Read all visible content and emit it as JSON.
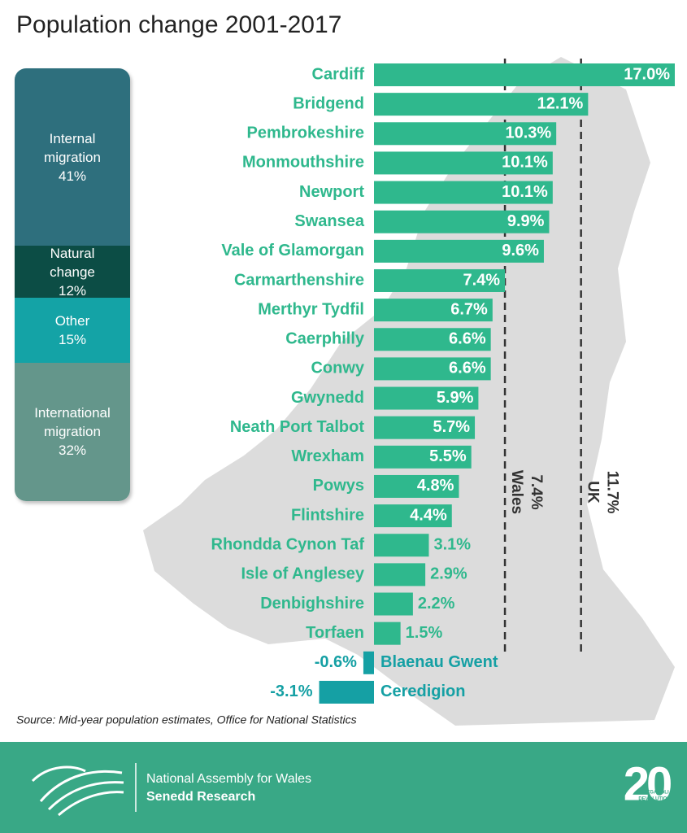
{
  "chart_data": {
    "type": "bar",
    "orientation": "horizontal",
    "title": "Population change 2001-2017",
    "source": "Source: Mid-year population estimates, Office for National Statistics",
    "categories": [
      "Cardiff",
      "Bridgend",
      "Pembrokeshire",
      "Monmouthshire",
      "Newport",
      "Swansea",
      "Vale of Glamorgan",
      "Carmarthenshire",
      "Merthyr Tydfil",
      "Caerphilly",
      "Conwy",
      "Gwynedd",
      "Neath Port Talbot",
      "Wrexham",
      "Powys",
      "Flintshire",
      "Rhondda Cynon Taf",
      "Isle of Anglesey",
      "Denbighshire",
      "Torfaen",
      "Blaenau Gwent",
      "Ceredigion"
    ],
    "values": [
      17.0,
      12.1,
      10.3,
      10.1,
      10.1,
      9.9,
      9.6,
      7.4,
      6.7,
      6.6,
      6.6,
      5.9,
      5.7,
      5.5,
      4.8,
      4.4,
      3.1,
      2.9,
      2.2,
      1.5,
      -0.6,
      -3.1
    ],
    "value_labels": [
      "17.0%",
      "12.1%",
      "10.3%",
      "10.1%",
      "10.1%",
      "9.9%",
      "9.6%",
      "7.4%",
      "6.7%",
      "6.6%",
      "6.6%",
      "5.9%",
      "5.7%",
      "5.5%",
      "4.8%",
      "4.4%",
      "3.1%",
      "2.9%",
      "2.2%",
      "1.5%",
      "-0.6%",
      "-3.1%"
    ],
    "color": "#2fb88d",
    "negative_color": "#15a0a4",
    "reference_lines": [
      {
        "label": "Wales",
        "value": 7.4,
        "value_label": "7.4%"
      },
      {
        "label": "UK",
        "value": 11.7,
        "value_label": "11.7%"
      }
    ],
    "components": [
      {
        "name": "Internal migration",
        "value": 41,
        "value_label": "41%",
        "color": "#2e6f7d"
      },
      {
        "name": "Natural change",
        "value": 12,
        "value_label": "12%",
        "color": "#0c4d45"
      },
      {
        "name": "Other",
        "value": 15,
        "value_label": "15%",
        "color": "#14a3a6"
      },
      {
        "name": "International migration",
        "value": 32,
        "value_label": "32%",
        "color": "#64968b"
      }
    ]
  },
  "footer": {
    "organisation": "National Assembly for Wales",
    "unit": "Senedd Research",
    "badge": "20",
    "badge_text": [
      "DATGANOLI",
      "DEVOLUTION"
    ]
  }
}
